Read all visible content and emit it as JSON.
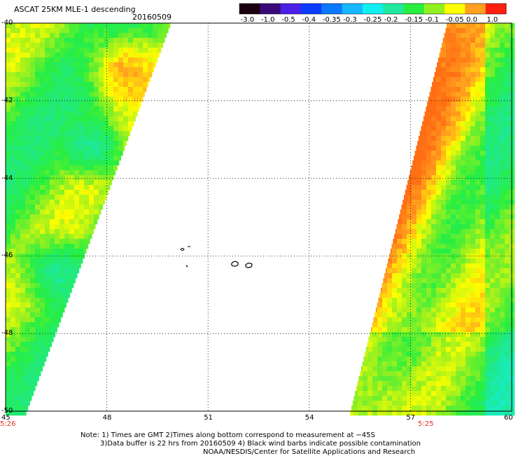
{
  "header": {
    "title": "ASCAT 25KM MLE-1 descending",
    "date": "20160509"
  },
  "colorbar": {
    "labels": [
      "-3.0",
      "-1.0",
      "-0.5",
      "-0.4",
      "-0.35",
      "-0.3",
      "-0.25",
      "-0.2",
      "-0.15",
      "-0.1",
      "-0.05",
      "0.0",
      "1.0"
    ],
    "colors": [
      "#1a0010",
      "#3a0a7a",
      "#4b1fe6",
      "#0a3cff",
      "#0a78ff",
      "#15b7ff",
      "#10f0f0",
      "#20e8a0",
      "#28ee40",
      "#90f020",
      "#ffff00",
      "#ffa020",
      "#ff2010"
    ]
  },
  "map": {
    "lon_range": [
      45,
      60
    ],
    "lat_range": [
      -50,
      -40
    ],
    "lon_ticks": [
      "45",
      "48",
      "51",
      "54",
      "57",
      "60"
    ],
    "lat_ticks": [
      "-40",
      "-42",
      "-44",
      "-46",
      "-48",
      "-50"
    ],
    "grid": true,
    "swaths": [
      {
        "side": "west",
        "time_label": "5:26"
      },
      {
        "side": "east",
        "time_label": "5:25"
      }
    ]
  },
  "notes": {
    "line1": "Note: 1) Times are GMT 2)Times along bottom correspond to measurement at −45S",
    "line2": "3)Data buffer is 22 hrs from 20160509 4) Black wind barbs indicate possible contamination",
    "line3": "NOAA/NESDIS/Center for Satellite Applications and Research"
  }
}
